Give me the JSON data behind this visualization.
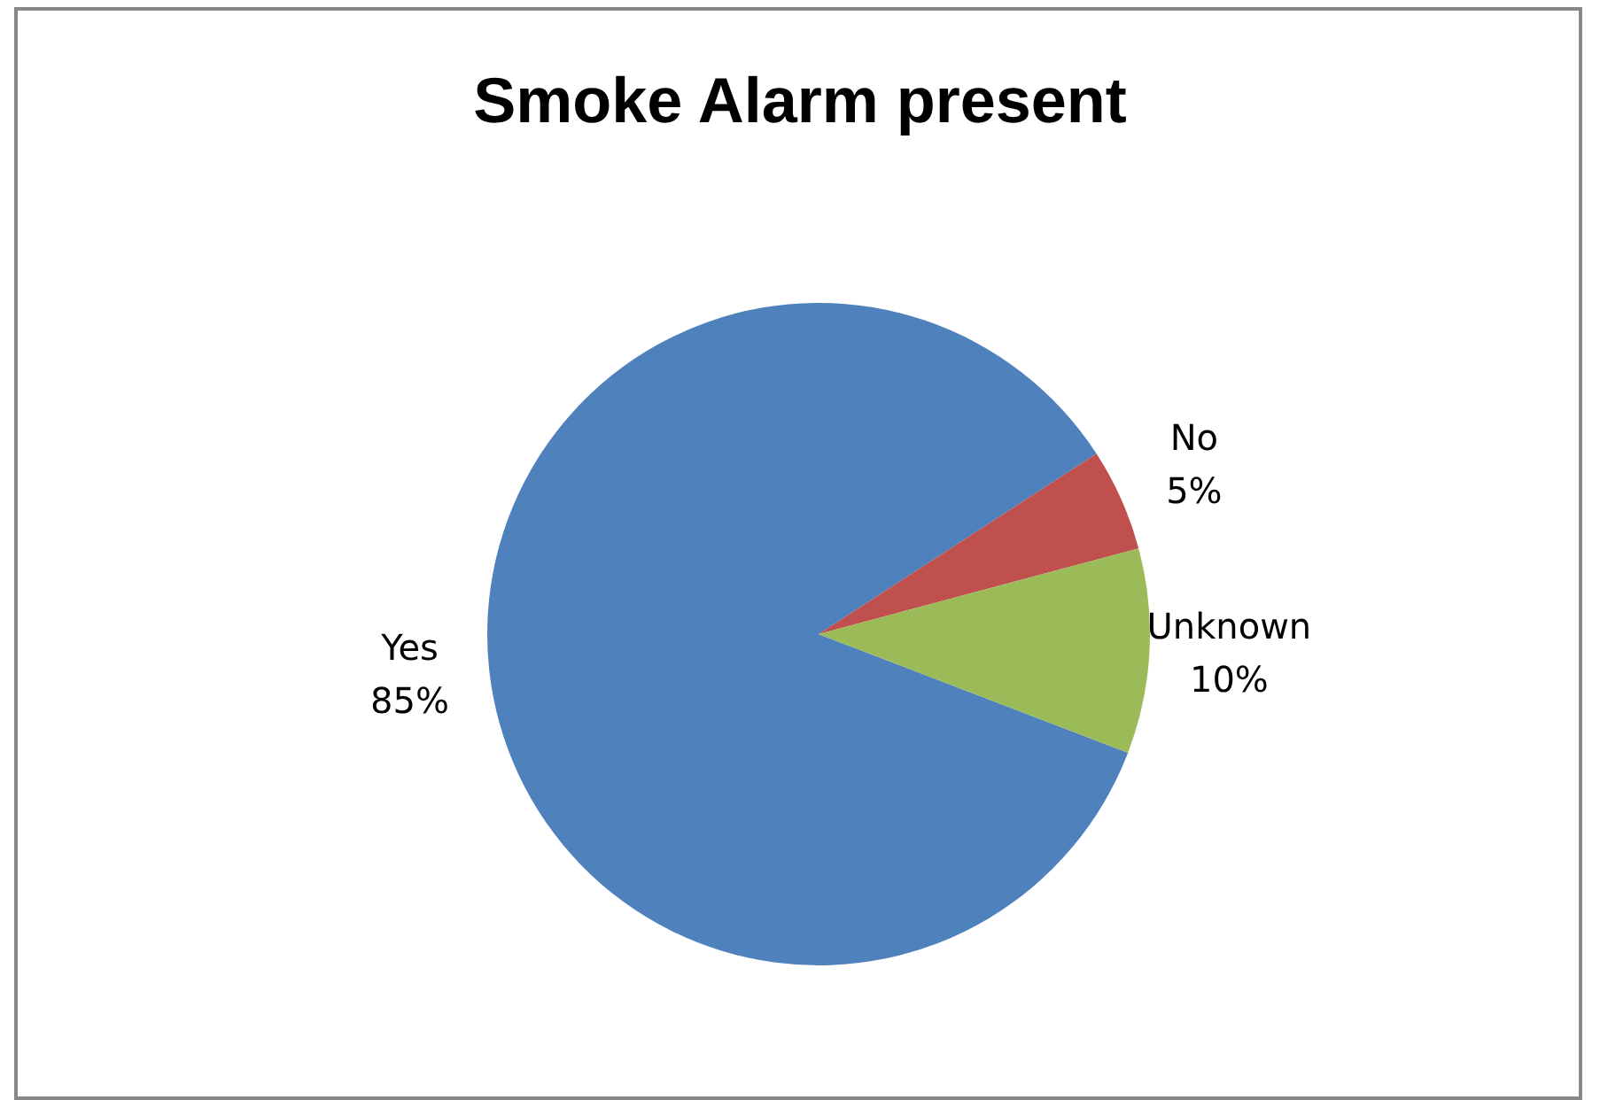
{
  "chart_data": {
    "type": "pie",
    "title": "Smoke Alarm present",
    "categories": [
      "Yes",
      "No",
      "Unknown"
    ],
    "values": [
      85,
      5,
      10
    ],
    "value_labels": [
      "85%",
      "5%",
      "10%"
    ],
    "colors": [
      "#4f81bd",
      "#c0504d",
      "#9bbb59"
    ],
    "legend": false
  }
}
